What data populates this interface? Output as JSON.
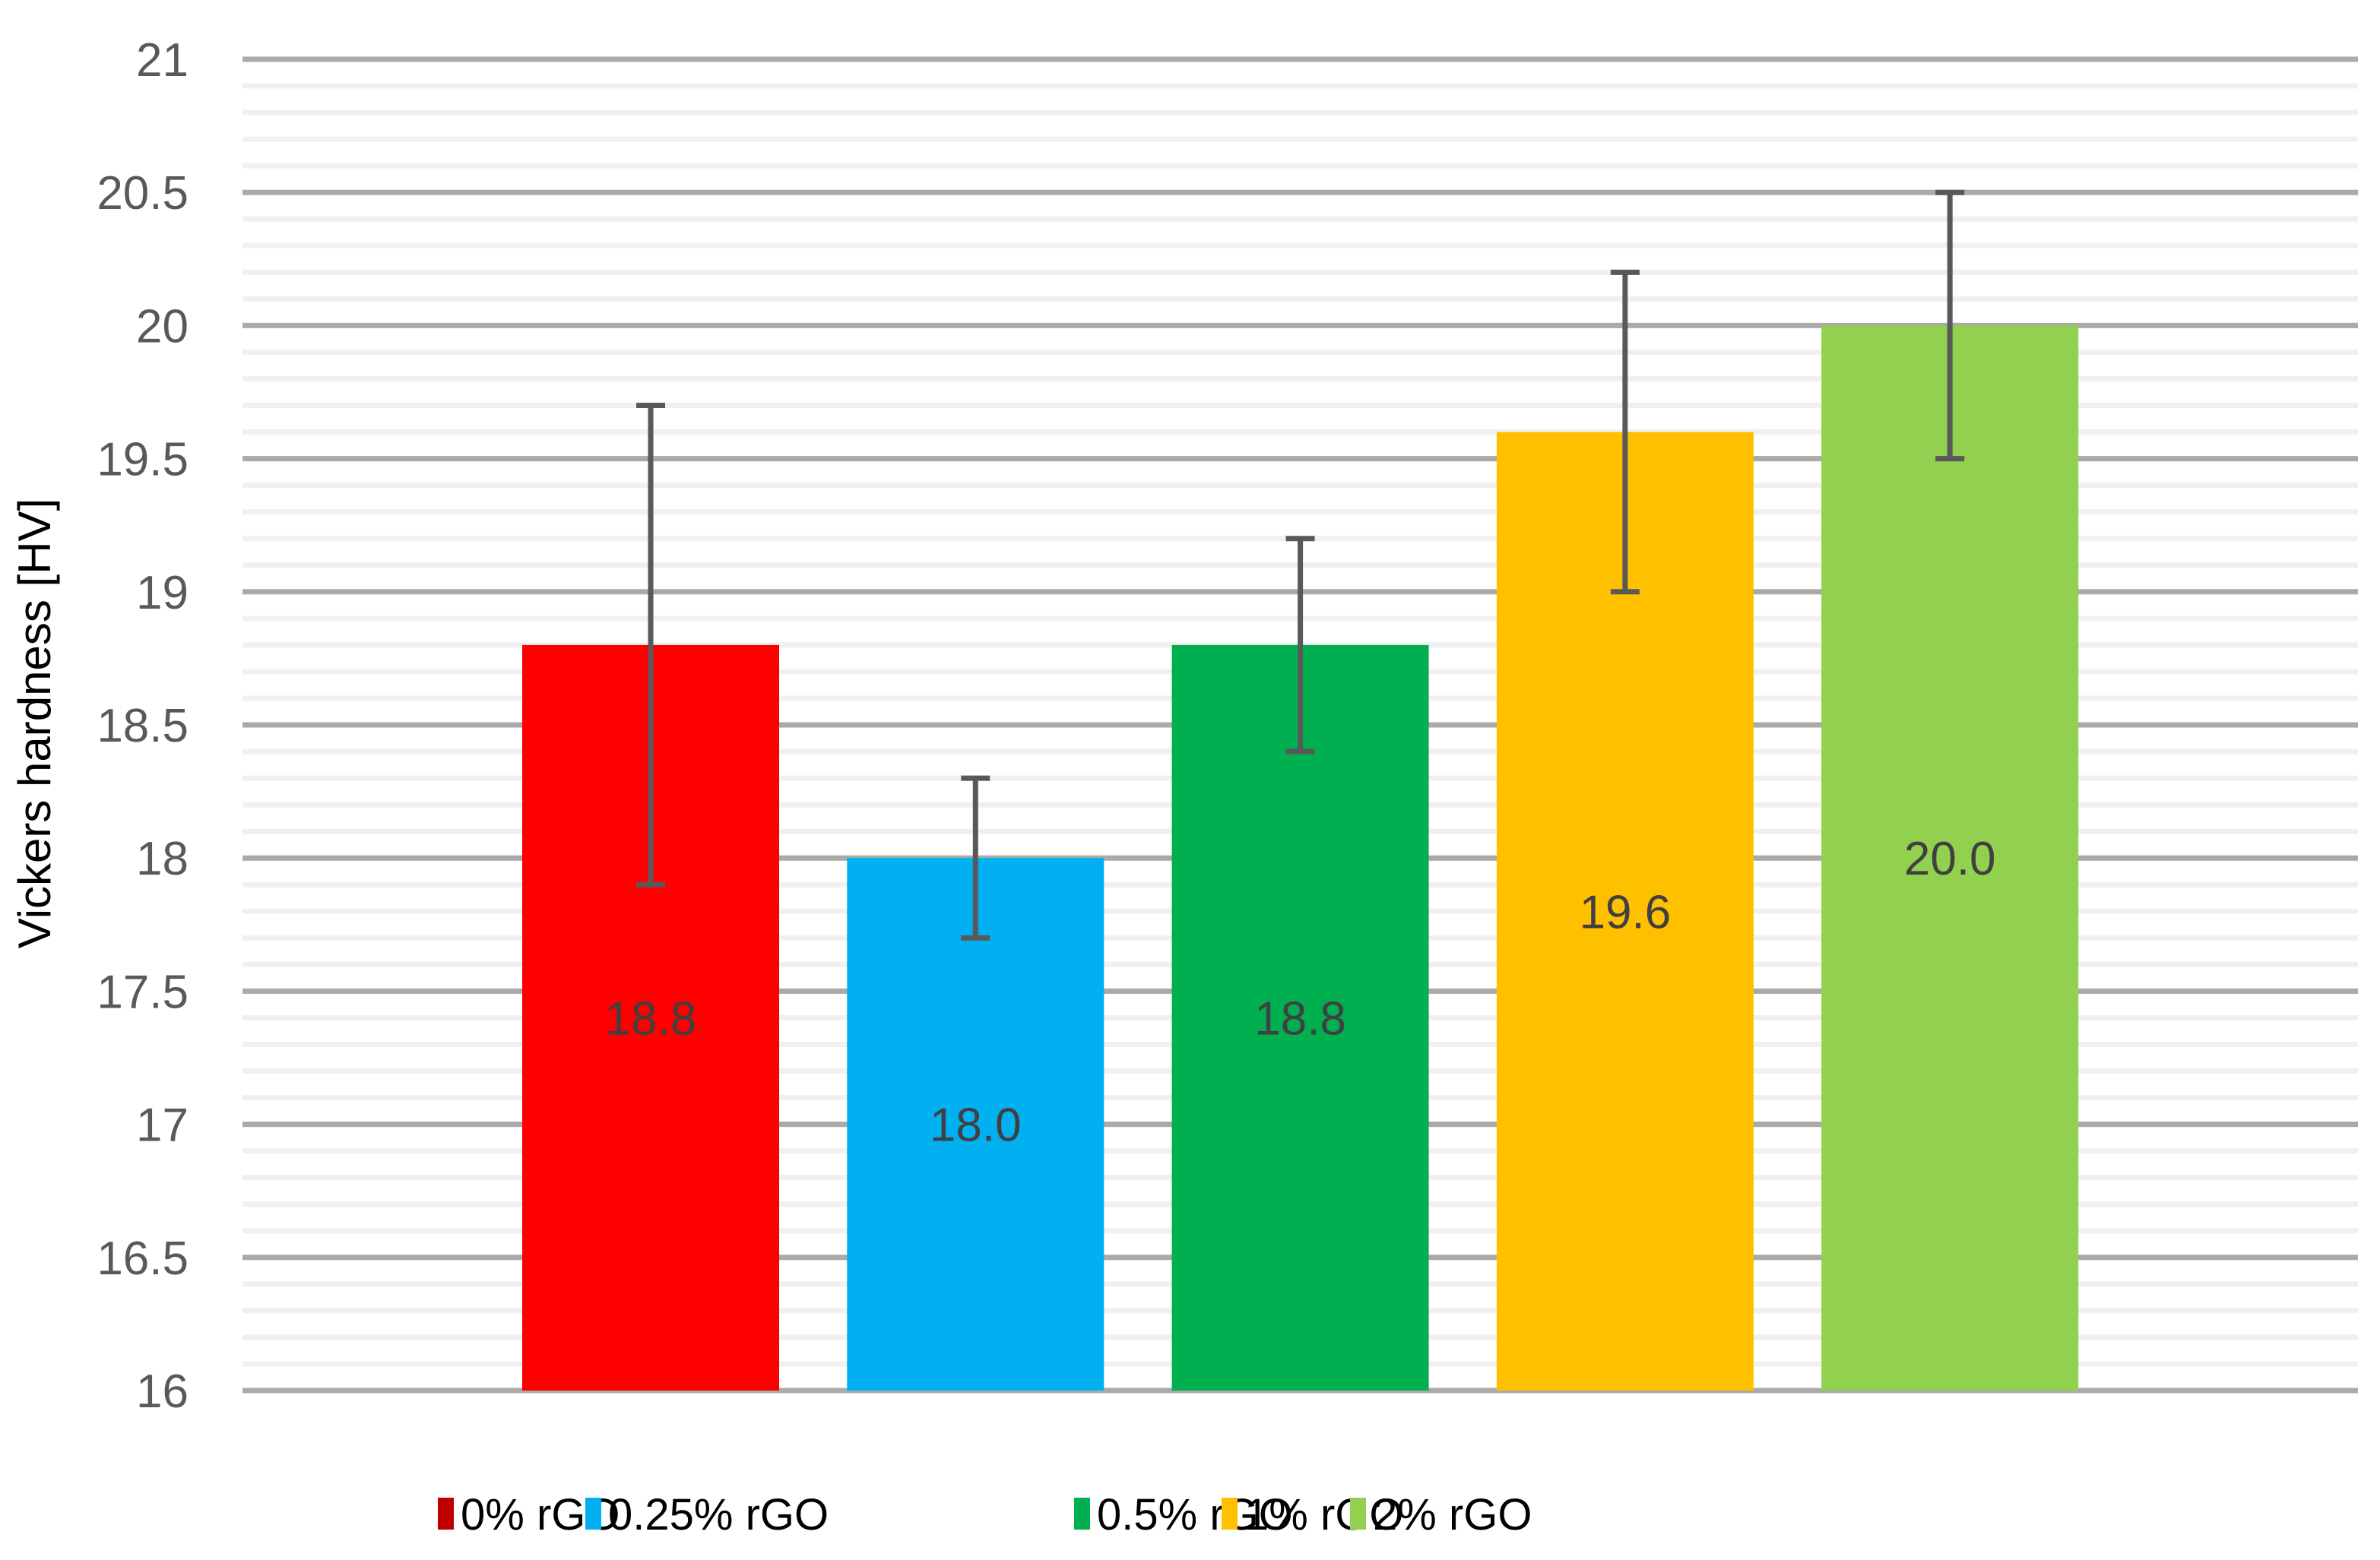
{
  "chart_data": {
    "type": "bar",
    "title": "",
    "xlabel": "",
    "ylabel": "Vickers hardness  [HV]",
    "ylim": [
      16,
      21
    ],
    "y_major_step": 0.5,
    "y_minor_step": 0.1,
    "y_ticks": [
      "16",
      "16.5",
      "17",
      "17.5",
      "18",
      "18.5",
      "19",
      "19.5",
      "20",
      "20.5",
      "21"
    ],
    "grid": true,
    "legend_position": "bottom",
    "categories": [
      "0% rGO",
      "0.25% rGO",
      "0.5% rGO",
      "1% rGO",
      "2% rGO"
    ],
    "values": [
      18.8,
      18.0,
      18.8,
      19.6,
      20.0
    ],
    "data_labels": [
      "18.8",
      "18.0",
      "18.8",
      "19.6",
      "20.0"
    ],
    "error_low": [
      17.9,
      17.7,
      18.4,
      19.0,
      19.5
    ],
    "error_high": [
      19.7,
      18.3,
      19.2,
      20.2,
      20.5
    ],
    "series": [
      {
        "name": "0% rGO",
        "value": 18.8,
        "label": "18.8",
        "err": [
          17.9,
          19.7
        ],
        "color": "#FF0000",
        "legend_color": "#C00000"
      },
      {
        "name": "0.25% rGO",
        "value": 18.0,
        "label": "18.0",
        "err": [
          17.7,
          18.3
        ],
        "color": "#00B0F0",
        "legend_color": "#00B0F0"
      },
      {
        "name": "0.5% rGO",
        "value": 18.8,
        "label": "18.8",
        "err": [
          18.4,
          19.2
        ],
        "color": "#00B050",
        "legend_color": "#00B050"
      },
      {
        "name": "1% rGO",
        "value": 19.6,
        "label": "19.6",
        "err": [
          19.0,
          20.2
        ],
        "color": "#FFC000",
        "legend_color": "#FFC000"
      },
      {
        "name": "2% rGO",
        "value": 20.0,
        "label": "20.0",
        "err": [
          19.5,
          20.5
        ],
        "color": "#92D050",
        "legend_color": "#92D050"
      }
    ]
  },
  "colors": {
    "major_grid": "#ADA9A8",
    "minor_grid": "#F0F0F0",
    "error_bar": "#595959",
    "tick_label": "#595959",
    "data_label": "#404040"
  }
}
